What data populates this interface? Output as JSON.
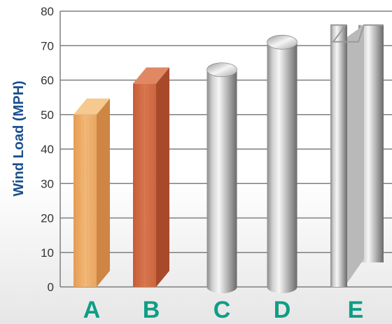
{
  "chart_data": {
    "type": "bar",
    "title": "",
    "xlabel": "",
    "ylabel": "Wind Load (MPH)",
    "ylim": [
      0,
      80
    ],
    "yticks": [
      0,
      10,
      20,
      30,
      40,
      50,
      60,
      70,
      80
    ],
    "grid": true,
    "categories": [
      "A",
      "B",
      "C",
      "D",
      "E"
    ],
    "values": [
      50,
      59,
      63,
      71,
      76
    ],
    "materials": [
      "wood-light",
      "wood-red",
      "metal-round",
      "metal-round",
      "metal-z-profile"
    ],
    "colors": {
      "ylabel": "#1b4f8f",
      "category_labels": "#0e9e86",
      "gridline": "#7f7f7f",
      "wood_light": "#e9a760",
      "wood_red": "#cd6a44",
      "metal": "#c8c8c8"
    }
  }
}
